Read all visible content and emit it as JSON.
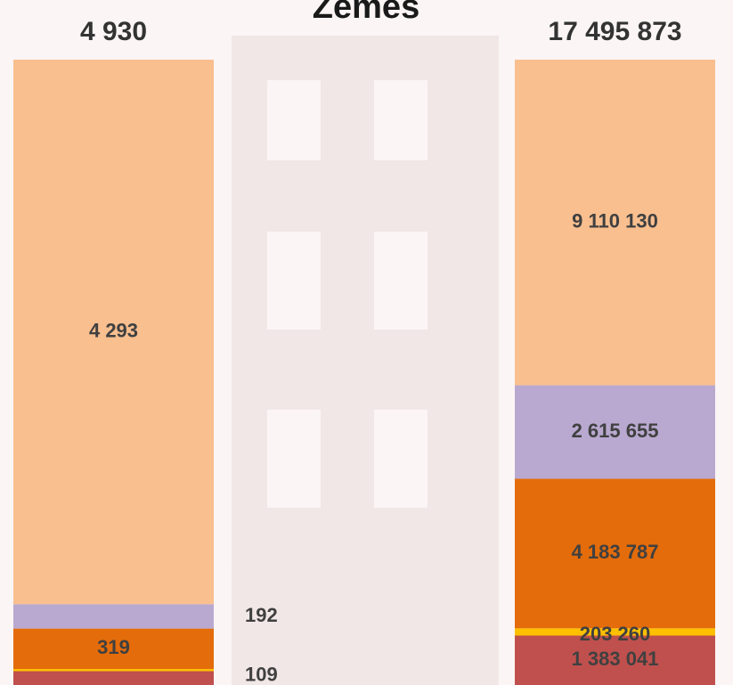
{
  "chart_data": {
    "type": "stacked-bar-100",
    "title": "Zemes",
    "totals": {
      "values": [
        4930,
        17495873
      ],
      "value_labels": [
        "4 930",
        "17 495 873"
      ]
    },
    "series": [
      {
        "color": "#c0504d",
        "values": [
          109,
          1383041
        ],
        "value_labels": [
          "109",
          "1 383 041"
        ]
      },
      {
        "color": "#ffc000",
        "values": [
          17,
          203260
        ],
        "value_labels": [
          null,
          "203 260"
        ]
      },
      {
        "color": "#e46c0a",
        "values": [
          319,
          4183787
        ],
        "value_labels": [
          "319",
          "4 183 787"
        ]
      },
      {
        "color": "#b9a9d0",
        "values": [
          192,
          2615655
        ],
        "value_labels": [
          "192",
          "2 615 655"
        ]
      },
      {
        "color": "#f9bf8f",
        "values": [
          4293,
          9110130
        ],
        "value_labels": [
          "4 293",
          "9 110 130"
        ]
      }
    ]
  }
}
